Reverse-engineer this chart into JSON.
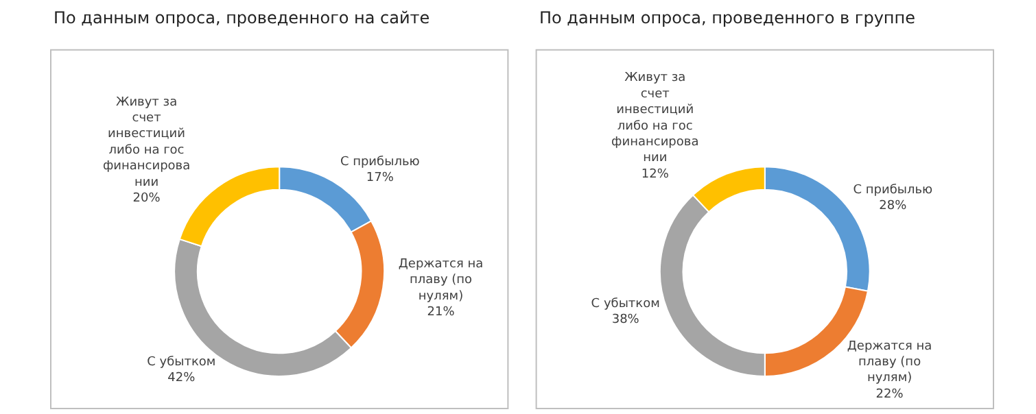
{
  "chart_data": [
    {
      "type": "donut",
      "title": "По данным опроса, проведенного на сайте",
      "categories": [
        "С прибылью",
        "Держатся на плаву (по нулям)",
        "С убытком",
        "Живут за счет инвестиций либо на госфинансировании"
      ],
      "values": [
        17,
        21,
        42,
        20
      ],
      "value_labels": [
        "17%",
        "21%",
        "42%",
        "20%"
      ],
      "colors": [
        "#5b9bd5",
        "#ed7d31",
        "#a5a5a5",
        "#ffc000"
      ]
    },
    {
      "type": "donut",
      "title": "По данным опроса, проведенного в группе",
      "categories": [
        "С прибылью",
        "Держатся на плаву (по нулям)",
        "С убытком",
        "Живут за счет инвестиций либо на госфинансировании"
      ],
      "values": [
        28,
        22,
        38,
        12
      ],
      "value_labels": [
        "28%",
        "22%",
        "38%",
        "12%"
      ],
      "colors": [
        "#5b9bd5",
        "#ed7d31",
        "#a5a5a5",
        "#ffc000"
      ]
    }
  ]
}
